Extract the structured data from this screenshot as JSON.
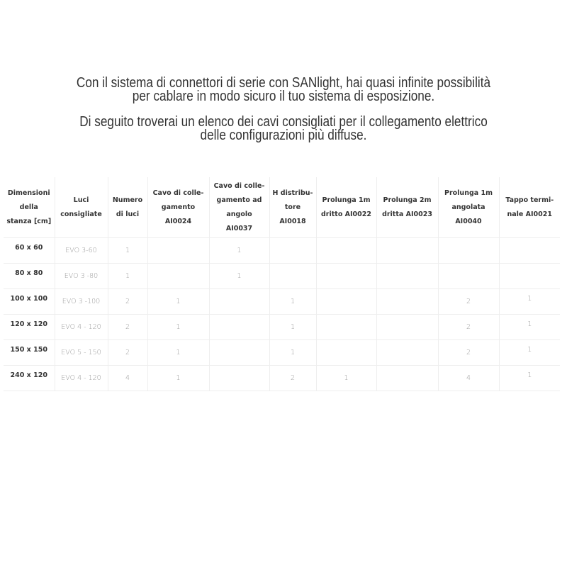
{
  "intro": {
    "paragraph1": [
      "Con il sistema di connettori di serie con SANlight, hai quasi infinite possibilità",
      "per cablare in modo sicuro il tuo sistema di esposizione."
    ],
    "paragraph2": [
      "Di seguito troverai un elenco dei cavi consigliati per il collegamento elettrico",
      "delle configurazioni più diffuse."
    ]
  },
  "table": {
    "headers": [
      "Dimensioni della stanza [cm]",
      "Luci consigliate",
      "Numero di luci",
      "Cavo di colle-gamento AI0024",
      "Cavo di colle-gamento ad angolo AI0037",
      "H distribu-tore AI0018",
      "Prolunga 1m dritto AI0022",
      "Prolunga 2m dritta AI0023",
      "Prolunga 1m angolata AI0040",
      "Tappo termi-nale AI0021"
    ],
    "rows": [
      [
        "60 x 60",
        "EVO 3-60",
        "1",
        "",
        "1",
        "",
        "",
        "",
        "",
        ""
      ],
      [
        "80 x 80",
        "EVO 3 -80",
        "1",
        "",
        "1",
        "",
        "",
        "",
        "",
        ""
      ],
      [
        "100 x 100",
        "EVO 3 -100",
        "2",
        "1",
        "",
        "1",
        "",
        "",
        "2",
        "1"
      ],
      [
        "120 x 120",
        "EVO 4 - 120",
        "2",
        "1",
        "",
        "1",
        "",
        "",
        "2",
        "1"
      ],
      [
        "150 x 150",
        "EVO 5 - 150",
        "2",
        "1",
        "",
        "1",
        "",
        "",
        "2",
        "1"
      ],
      [
        "240 x 120",
        "EVO 4 - 120",
        "4",
        "1",
        "",
        "2",
        "1",
        "",
        "4",
        "1"
      ]
    ]
  }
}
